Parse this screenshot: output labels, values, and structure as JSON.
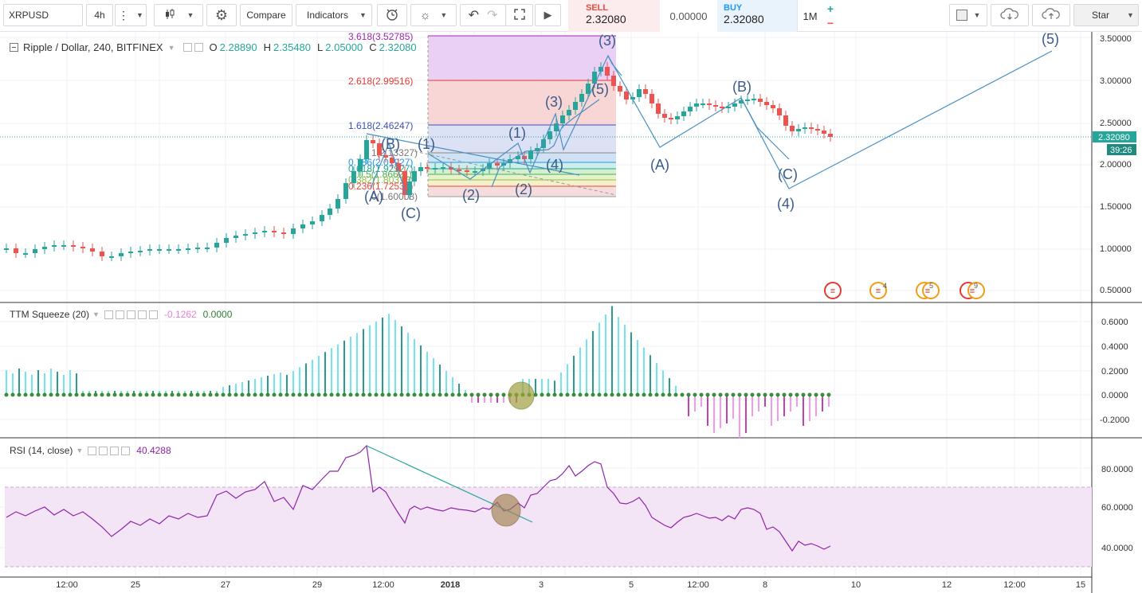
{
  "toolbar": {
    "symbol": "XRPUSD",
    "interval": "4h",
    "compare_label": "Compare",
    "indicators_label": "Indicators",
    "star_label": "Star",
    "sell_label": "SELL",
    "sell_price": "2.32080",
    "spread": "0.00000",
    "buy_label": "BUY",
    "buy_price": "2.32080",
    "trade_size": "1M",
    "plus": "+",
    "minus": "−",
    "icons": [
      "menu-dots-icon",
      "chevron-down-icon",
      "candlestick-icon",
      "gear-icon",
      "alarm-clock-icon",
      "lightbulb-icon",
      "undo-icon",
      "redo-icon",
      "fullscreen-icon",
      "play-icon",
      "square-icon",
      "cloud-download-icon",
      "cloud-upload-icon"
    ]
  },
  "main": {
    "title": "Ripple / Dollar, 240, BITFINEX",
    "o_label": "O",
    "o": "2.28890",
    "h_label": "H",
    "h": "2.35480",
    "l_label": "L",
    "l": "2.05000",
    "c_label": "C",
    "c": "2.32080",
    "price_axis": [
      "3.50000",
      "3.00000",
      "2.50000",
      "2.00000",
      "1.50000",
      "1.00000",
      "0.50000"
    ],
    "last_price": "2.32080",
    "countdown": "39:26",
    "fib_levels": [
      "3.618(3.52785)",
      "2.618(2.99516)",
      "1.618(2.46247)",
      "1(2.13327)",
      "0.786(2.01927)",
      "0.618(1.92927)",
      "0.5(1.86621)",
      "0.382(1.80315)",
      "0.236(1.72539)",
      "0(1.60008)"
    ],
    "waves": [
      "(A)",
      "(B)",
      "(C)",
      "(1)",
      "(2)",
      "(3)",
      "(4)",
      "(5)",
      "(1)",
      "(2)",
      "(3)",
      "(4)",
      "(5)",
      "(A)",
      "(B)",
      "(C)",
      "(4)",
      "(5)"
    ],
    "event_badges": [
      "",
      "4",
      "5",
      "9"
    ]
  },
  "ttm": {
    "title": "TTM Squeeze (20)",
    "v1": "-0.1262",
    "v2": "0.0000",
    "axis": [
      "0.6000",
      "0.4000",
      "0.2000",
      "0.0000",
      "-0.2000"
    ]
  },
  "rsi": {
    "title": "RSI (14, close)",
    "value": "40.4288",
    "axis": [
      "80.0000",
      "60.0000",
      "40.0000"
    ]
  },
  "time_axis": [
    "12:00",
    "25",
    "12:00",
    "27",
    "12:00",
    "29",
    "12:00",
    "2018",
    "12:00",
    "3",
    "12:00",
    "5",
    "12:00",
    "8",
    "12:00",
    "10",
    "12:00",
    "12",
    "12:00",
    "15"
  ],
  "colors": {
    "up": "#26a69a",
    "down": "#ef5350",
    "ttm_up": "#70e7f0",
    "ttm_up_dark": "#2a9c8e",
    "ttm_down": "#f39bea",
    "ttm_down_dark": "#c341b3",
    "rsi_line": "#8e24aa",
    "rsi_band": "#f3e5f5",
    "fib_extreme": "#e1bee7"
  }
}
